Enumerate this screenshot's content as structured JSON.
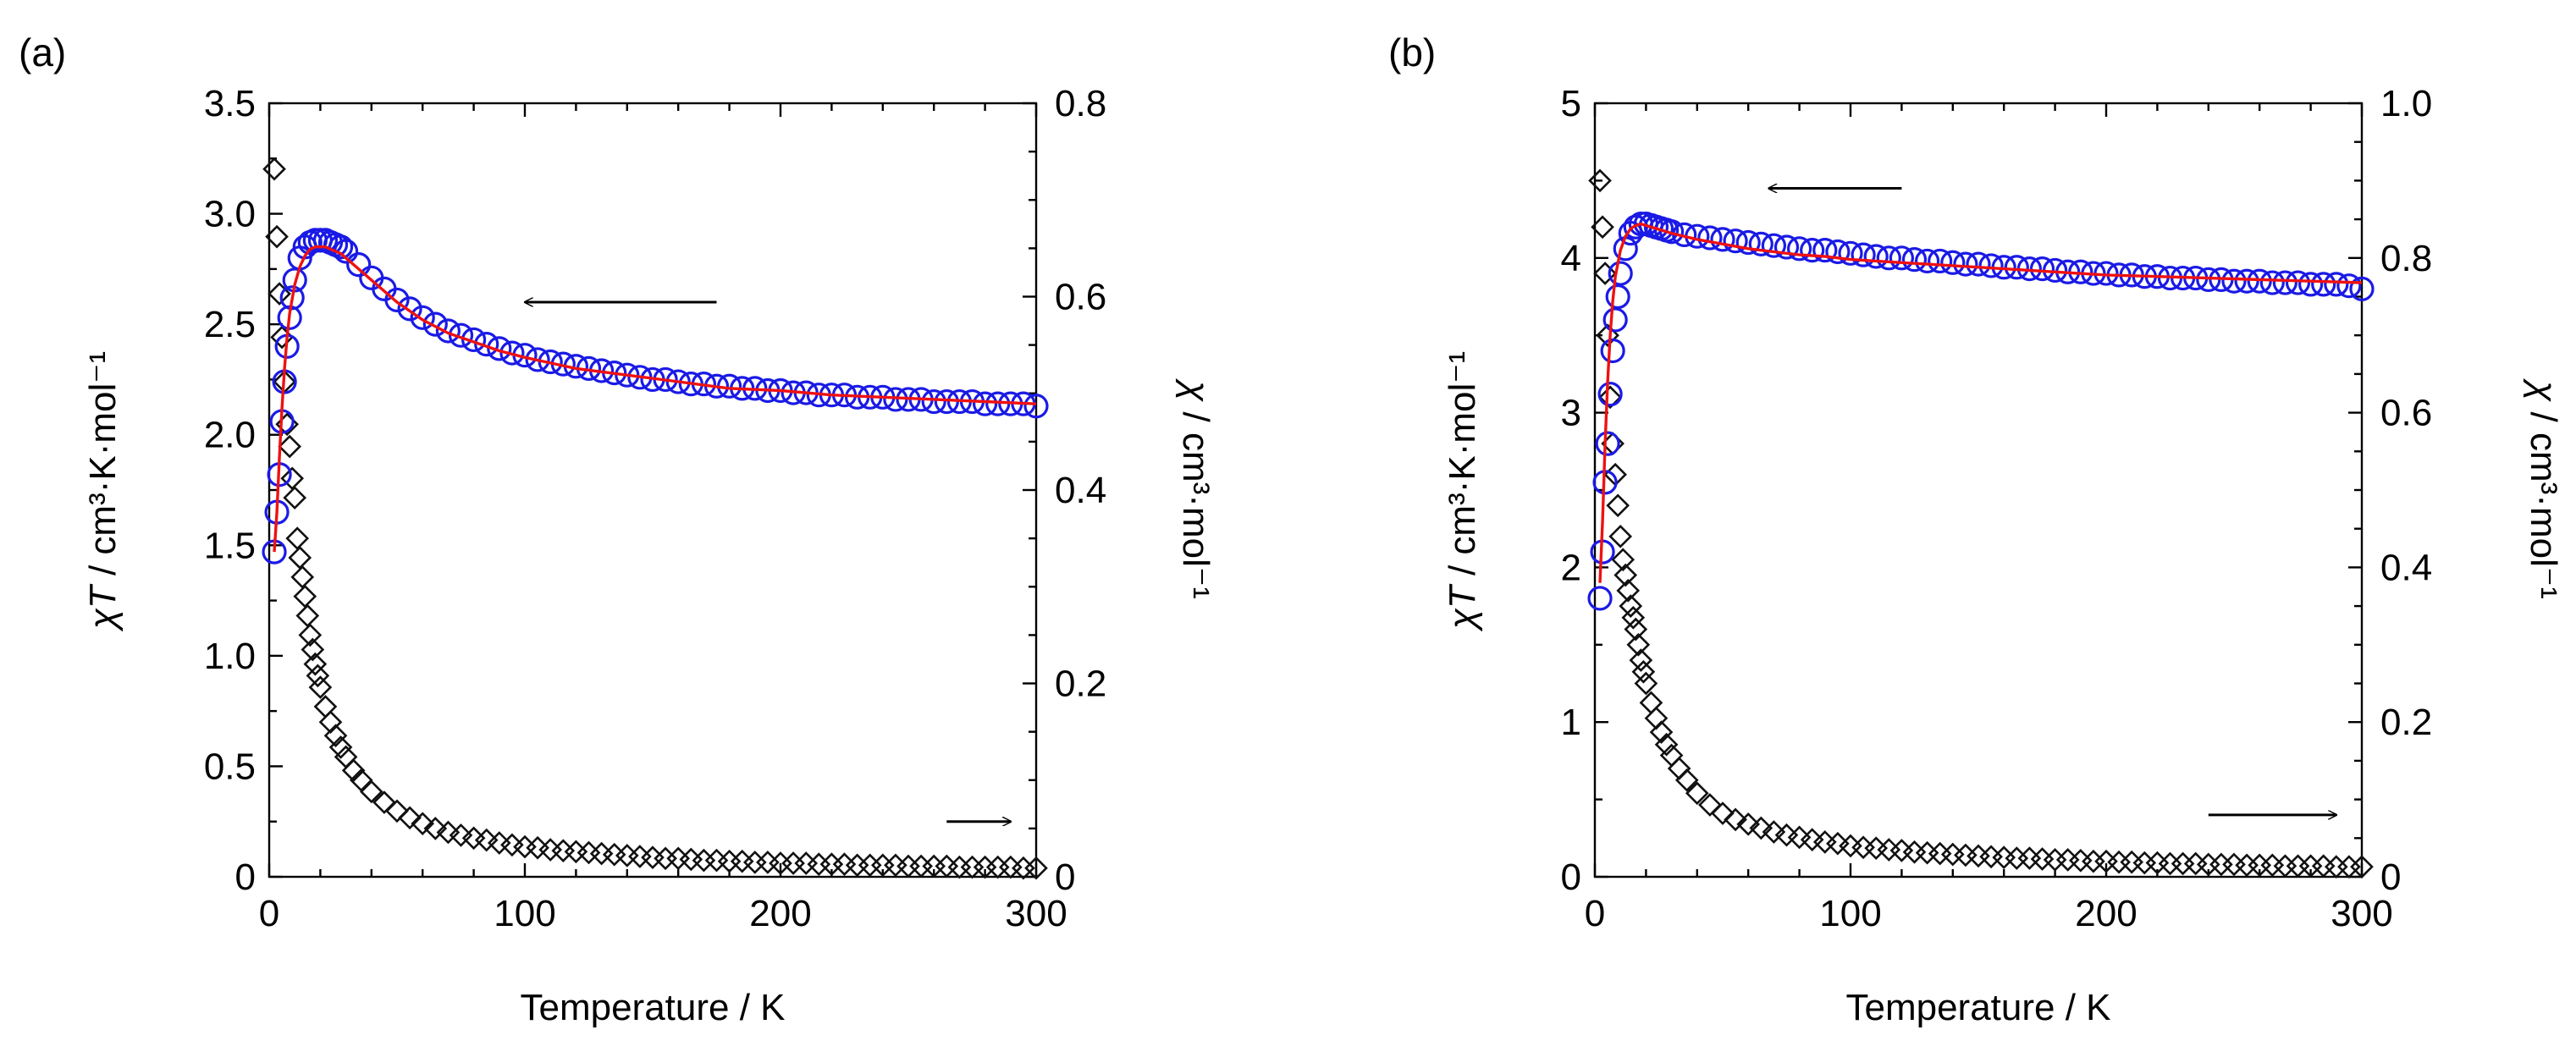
{
  "chart_data": [
    {
      "type": "scatter",
      "panel_label": "(a)",
      "xlabel": "Temperature / K",
      "ylabel_left": {
        "sym": "χT",
        "unit": " / cm³·K·mol⁻¹"
      },
      "ylabel_right": {
        "sym": "χ",
        "unit": " / cm³·mol⁻¹"
      },
      "xlim": [
        0,
        300
      ],
      "ylim_left": [
        0,
        3.5
      ],
      "ylim_right": [
        0,
        0.8
      ],
      "xticks": [
        0,
        100,
        200,
        300
      ],
      "xtick_labels": [
        "0",
        "100",
        "200",
        "300"
      ],
      "yticks_left": [
        0,
        0.5,
        1.0,
        1.5,
        2.0,
        2.5,
        3.0,
        3.5
      ],
      "ytick_labels_left": [
        "0",
        "0.5",
        "1.0",
        "1.5",
        "2.0",
        "2.5",
        "3.0",
        "3.5"
      ],
      "yticks_right": [
        0,
        0.2,
        0.4,
        0.6,
        0.8
      ],
      "ytick_labels_right": [
        "0",
        "0.2",
        "0.4",
        "0.6",
        "0.8"
      ],
      "series": [
        {
          "name": "χT (blue circles, left axis)",
          "axis": "left",
          "marker": "circle",
          "color": "#1a1ae6",
          "x": [
            2,
            3,
            4,
            5,
            6,
            7,
            8,
            9,
            10,
            12,
            14,
            16,
            18,
            20,
            22,
            24,
            26,
            28,
            30,
            35,
            40,
            45,
            50,
            55,
            60,
            65,
            70,
            75,
            80,
            85,
            90,
            95,
            100,
            105,
            110,
            115,
            120,
            125,
            130,
            135,
            140,
            145,
            150,
            155,
            160,
            165,
            170,
            175,
            180,
            185,
            190,
            195,
            200,
            205,
            210,
            215,
            220,
            225,
            230,
            235,
            240,
            245,
            250,
            255,
            260,
            265,
            270,
            275,
            280,
            285,
            290,
            295,
            300
          ],
          "y": [
            1.47,
            1.65,
            1.82,
            2.06,
            2.24,
            2.4,
            2.53,
            2.62,
            2.7,
            2.8,
            2.85,
            2.87,
            2.88,
            2.88,
            2.88,
            2.87,
            2.86,
            2.85,
            2.83,
            2.77,
            2.71,
            2.66,
            2.61,
            2.57,
            2.53,
            2.5,
            2.47,
            2.45,
            2.43,
            2.41,
            2.39,
            2.37,
            2.36,
            2.34,
            2.33,
            2.32,
            2.31,
            2.3,
            2.29,
            2.28,
            2.27,
            2.26,
            2.25,
            2.25,
            2.24,
            2.23,
            2.23,
            2.22,
            2.22,
            2.21,
            2.21,
            2.2,
            2.2,
            2.19,
            2.19,
            2.18,
            2.18,
            2.18,
            2.17,
            2.17,
            2.17,
            2.16,
            2.16,
            2.16,
            2.15,
            2.15,
            2.15,
            2.15,
            2.14,
            2.14,
            2.14,
            2.14,
            2.13
          ]
        },
        {
          "name": "χ (black diamonds, right axis)",
          "axis": "right",
          "marker": "diamond",
          "color": "#111111",
          "x": [
            2,
            3,
            4,
            5,
            6,
            7,
            8,
            9,
            10,
            11,
            12,
            13,
            14,
            15,
            16,
            17,
            18,
            19,
            20,
            22,
            24,
            26,
            28,
            30,
            33,
            36,
            40,
            45,
            50,
            55,
            60,
            65,
            70,
            75,
            80,
            85,
            90,
            95,
            100,
            105,
            110,
            115,
            120,
            125,
            130,
            135,
            140,
            145,
            150,
            155,
            160,
            165,
            170,
            175,
            180,
            185,
            190,
            195,
            200,
            205,
            210,
            215,
            220,
            225,
            230,
            235,
            240,
            245,
            250,
            255,
            260,
            265,
            270,
            275,
            280,
            285,
            290,
            295,
            300
          ],
          "y": [
            0.732,
            0.662,
            0.603,
            0.558,
            0.512,
            0.468,
            0.445,
            0.412,
            0.392,
            0.35,
            0.33,
            0.31,
            0.29,
            0.27,
            0.25,
            0.235,
            0.22,
            0.208,
            0.196,
            0.176,
            0.16,
            0.146,
            0.134,
            0.124,
            0.11,
            0.1,
            0.088,
            0.077,
            0.068,
            0.061,
            0.055,
            0.05,
            0.046,
            0.043,
            0.04,
            0.038,
            0.035,
            0.033,
            0.031,
            0.03,
            0.028,
            0.027,
            0.026,
            0.025,
            0.024,
            0.023,
            0.022,
            0.021,
            0.02,
            0.019,
            0.019,
            0.018,
            0.017,
            0.017,
            0.016,
            0.016,
            0.015,
            0.015,
            0.014,
            0.014,
            0.014,
            0.013,
            0.013,
            0.013,
            0.012,
            0.012,
            0.012,
            0.012,
            0.011,
            0.011,
            0.011,
            0.011,
            0.01,
            0.01,
            0.01,
            0.01,
            0.01,
            0.009,
            0.009
          ]
        },
        {
          "name": "fit (red line, left axis)",
          "axis": "left",
          "type": "line",
          "color": "#ee1111",
          "x": [
            2,
            3,
            4,
            5,
            6,
            7,
            8,
            10,
            12,
            14,
            16,
            18,
            20,
            22,
            24,
            26,
            28,
            30,
            35,
            40,
            50,
            60,
            70,
            80,
            90,
            100,
            120,
            140,
            160,
            180,
            200,
            220,
            240,
            260,
            280,
            300
          ],
          "y": [
            1.47,
            1.65,
            1.9,
            2.12,
            2.3,
            2.44,
            2.55,
            2.68,
            2.76,
            2.81,
            2.84,
            2.85,
            2.85,
            2.85,
            2.84,
            2.83,
            2.82,
            2.8,
            2.75,
            2.7,
            2.6,
            2.52,
            2.46,
            2.42,
            2.38,
            2.35,
            2.3,
            2.27,
            2.24,
            2.21,
            2.2,
            2.18,
            2.17,
            2.16,
            2.15,
            2.14
          ]
        }
      ],
      "annotations": [
        {
          "type": "arrow",
          "direction": "left",
          "points_to": "left axis",
          "x_data": [
            100,
            175
          ],
          "y_data_left": 2.6
        },
        {
          "type": "arrow",
          "direction": "right",
          "points_to": "right axis",
          "x_data": [
            265,
            325
          ],
          "y_data_left": 0.25
        }
      ]
    },
    {
      "type": "scatter",
      "panel_label": "(b)",
      "xlabel": "Temperature / K",
      "ylabel_left": {
        "sym": "χT",
        "unit": " / cm³·K·mol⁻¹"
      },
      "ylabel_right": {
        "sym": "χ",
        "unit": " / cm³·mol⁻¹"
      },
      "xlim": [
        0,
        300
      ],
      "ylim_left": [
        0,
        5
      ],
      "ylim_right": [
        0,
        1.0
      ],
      "xticks": [
        0,
        100,
        200,
        300
      ],
      "xtick_labels": [
        "0",
        "100",
        "200",
        "300"
      ],
      "yticks_left": [
        0,
        1,
        2,
        3,
        4,
        5
      ],
      "ytick_labels_left": [
        "0",
        "1",
        "2",
        "3",
        "4",
        "5"
      ],
      "yticks_right": [
        0,
        0.2,
        0.4,
        0.6,
        0.8,
        1.0
      ],
      "ytick_labels_right": [
        "0",
        "0.2",
        "0.4",
        "0.6",
        "0.8",
        "1.0"
      ],
      "series": [
        {
          "name": "χT (blue circles, left axis)",
          "axis": "left",
          "marker": "circle",
          "color": "#1a1ae6",
          "x": [
            2,
            3,
            4,
            5,
            6,
            7,
            8,
            9,
            10,
            12,
            14,
            16,
            18,
            20,
            22,
            24,
            26,
            28,
            30,
            35,
            40,
            45,
            50,
            55,
            60,
            65,
            70,
            75,
            80,
            85,
            90,
            95,
            100,
            105,
            110,
            115,
            120,
            125,
            130,
            135,
            140,
            145,
            150,
            155,
            160,
            165,
            170,
            175,
            180,
            185,
            190,
            195,
            200,
            205,
            210,
            215,
            220,
            225,
            230,
            235,
            240,
            245,
            250,
            255,
            260,
            265,
            270,
            275,
            280,
            285,
            290,
            295,
            300
          ],
          "y": [
            1.8,
            2.1,
            2.55,
            2.8,
            3.12,
            3.4,
            3.6,
            3.75,
            3.9,
            4.06,
            4.16,
            4.2,
            4.22,
            4.22,
            4.21,
            4.2,
            4.19,
            4.18,
            4.17,
            4.15,
            4.14,
            4.13,
            4.12,
            4.11,
            4.1,
            4.09,
            4.08,
            4.07,
            4.06,
            4.05,
            4.05,
            4.04,
            4.03,
            4.02,
            4.01,
            4.0,
            4.0,
            3.99,
            3.98,
            3.98,
            3.97,
            3.96,
            3.96,
            3.95,
            3.94,
            3.94,
            3.93,
            3.93,
            3.92,
            3.91,
            3.91,
            3.9,
            3.9,
            3.89,
            3.89,
            3.88,
            3.88,
            3.87,
            3.87,
            3.87,
            3.86,
            3.86,
            3.85,
            3.85,
            3.85,
            3.84,
            3.84,
            3.84,
            3.83,
            3.83,
            3.83,
            3.82,
            3.8
          ]
        },
        {
          "name": "χ (black diamonds, right axis)",
          "axis": "right",
          "marker": "diamond",
          "color": "#111111",
          "x": [
            2,
            3,
            4,
            5,
            6,
            7,
            8,
            9,
            10,
            11,
            12,
            13,
            14,
            15,
            16,
            17,
            18,
            19,
            20,
            22,
            24,
            26,
            28,
            30,
            33,
            36,
            40,
            45,
            50,
            55,
            60,
            65,
            70,
            75,
            80,
            85,
            90,
            95,
            100,
            105,
            110,
            115,
            120,
            125,
            130,
            135,
            140,
            145,
            150,
            155,
            160,
            165,
            170,
            175,
            180,
            185,
            190,
            195,
            200,
            205,
            210,
            215,
            220,
            225,
            230,
            235,
            240,
            245,
            250,
            255,
            260,
            265,
            270,
            275,
            280,
            285,
            290,
            295,
            300
          ],
          "y": [
            0.9,
            0.84,
            0.78,
            0.7,
            0.62,
            0.56,
            0.52,
            0.48,
            0.44,
            0.41,
            0.39,
            0.37,
            0.35,
            0.335,
            0.32,
            0.3,
            0.28,
            0.265,
            0.25,
            0.225,
            0.205,
            0.187,
            0.171,
            0.157,
            0.14,
            0.125,
            0.108,
            0.093,
            0.082,
            0.074,
            0.068,
            0.063,
            0.058,
            0.054,
            0.051,
            0.048,
            0.045,
            0.043,
            0.04,
            0.038,
            0.037,
            0.035,
            0.034,
            0.032,
            0.031,
            0.03,
            0.029,
            0.028,
            0.027,
            0.026,
            0.025,
            0.024,
            0.024,
            0.023,
            0.022,
            0.022,
            0.021,
            0.02,
            0.02,
            0.019,
            0.019,
            0.018,
            0.018,
            0.017,
            0.017,
            0.017,
            0.016,
            0.016,
            0.016,
            0.015,
            0.015,
            0.015,
            0.014,
            0.014,
            0.014,
            0.014,
            0.013,
            0.013,
            0.013
          ]
        },
        {
          "name": "fit (red line, left axis)",
          "axis": "left",
          "type": "line",
          "color": "#ee1111",
          "x": [
            2,
            3,
            4,
            5,
            6,
            7,
            8,
            10,
            12,
            14,
            16,
            18,
            20,
            22,
            24,
            26,
            28,
            30,
            40,
            50,
            60,
            70,
            80,
            90,
            100,
            120,
            140,
            160,
            180,
            200,
            220,
            240,
            260,
            280,
            300
          ],
          "y": [
            1.9,
            2.3,
            2.8,
            3.2,
            3.5,
            3.72,
            3.88,
            4.05,
            4.14,
            4.19,
            4.21,
            4.22,
            4.21,
            4.2,
            4.19,
            4.18,
            4.17,
            4.16,
            4.12,
            4.09,
            4.06,
            4.04,
            4.02,
            4.01,
            3.99,
            3.97,
            3.95,
            3.93,
            3.91,
            3.89,
            3.88,
            3.87,
            3.86,
            3.85,
            3.84
          ]
        }
      ],
      "annotations": [
        {
          "type": "arrow",
          "direction": "left",
          "points_to": "left axis",
          "x_data": [
            68,
            120
          ],
          "y_data_left": 4.45
        },
        {
          "type": "arrow",
          "direction": "right",
          "points_to": "right axis",
          "x_data": [
            240,
            300
          ],
          "y_data_left": 0.4
        }
      ]
    }
  ]
}
